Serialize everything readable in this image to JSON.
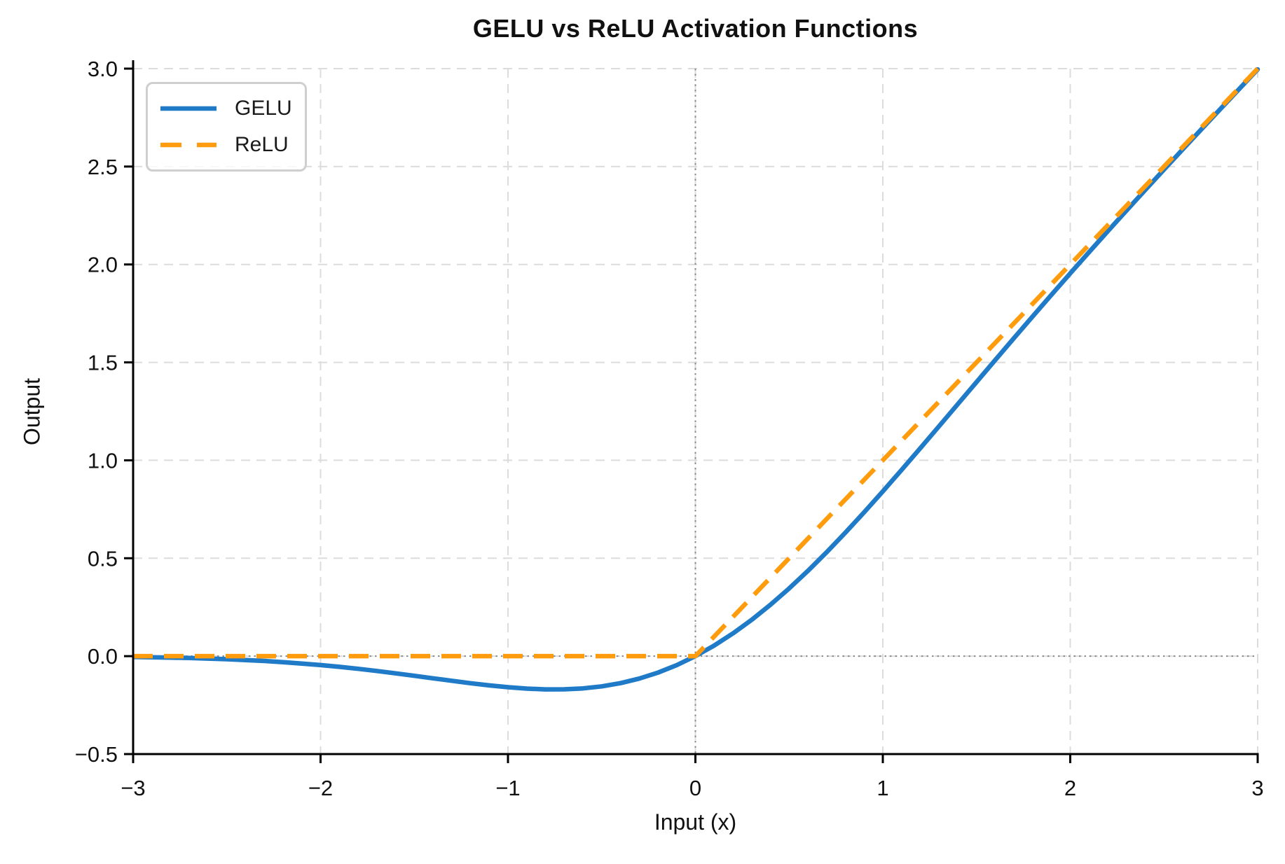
{
  "chart_data": {
    "type": "line",
    "title": "GELU vs ReLU Activation Functions",
    "xlabel": "Input (x)",
    "ylabel": "Output",
    "xlim": [
      -3,
      3
    ],
    "ylim": [
      -0.5,
      3.0
    ],
    "grid": true,
    "grid_style": "dashed",
    "legend_position": "upper-left",
    "x_ticks": {
      "values": [
        -3,
        -2,
        -1,
        0,
        1,
        2,
        3
      ],
      "labels": [
        "−3",
        "−2",
        "−1",
        "0",
        "1",
        "2",
        "3"
      ]
    },
    "y_ticks": {
      "values": [
        -0.5,
        0.0,
        0.5,
        1.0,
        1.5,
        2.0,
        2.5,
        3.0
      ],
      "labels": [
        "−0.5",
        "0.0",
        "0.5",
        "1.0",
        "1.5",
        "2.0",
        "2.5",
        "3.0"
      ]
    },
    "zero_lines": {
      "horizontal_y": 0.0,
      "vertical_x": 0.0
    },
    "series": [
      {
        "name": "GELU",
        "color": "#1f7ac8",
        "style": "solid",
        "x": [
          -3,
          -2.9,
          -2.8,
          -2.7,
          -2.6,
          -2.5,
          -2.4,
          -2.3,
          -2.2,
          -2.1,
          -2,
          -1.9,
          -1.8,
          -1.7,
          -1.6,
          -1.5,
          -1.4,
          -1.3,
          -1.2,
          -1.1,
          -1,
          -0.9,
          -0.8,
          -0.7,
          -0.6,
          -0.5,
          -0.4,
          -0.3,
          -0.2,
          -0.1,
          0,
          0.1,
          0.2,
          0.3,
          0.4,
          0.5,
          0.6,
          0.7,
          0.8,
          0.9,
          1,
          1.1,
          1.2,
          1.3,
          1.4,
          1.5,
          1.6,
          1.7,
          1.8,
          1.9,
          2,
          2.1,
          2.2,
          2.3,
          2.4,
          2.5,
          2.6,
          2.7,
          2.8,
          2.9,
          3
        ],
        "y": [
          -0.004,
          -0.0055,
          -0.0073,
          -0.0094,
          -0.0122,
          -0.0155,
          -0.0197,
          -0.0246,
          -0.0306,
          -0.0376,
          -0.0455,
          -0.0546,
          -0.0647,
          -0.0757,
          -0.0877,
          -0.1002,
          -0.1131,
          -0.1258,
          -0.1381,
          -0.1492,
          -0.1587,
          -0.1657,
          -0.1695,
          -0.1694,
          -0.1646,
          -0.1543,
          -0.1378,
          -0.1146,
          -0.0841,
          -0.046,
          0,
          0.054,
          0.1159,
          0.1854,
          0.2622,
          0.3457,
          0.4354,
          0.5306,
          0.6305,
          0.7343,
          0.8413,
          0.9508,
          1.0619,
          1.1742,
          1.2869,
          1.3998,
          1.5123,
          1.6242,
          1.7354,
          1.8455,
          1.9545,
          2.0625,
          2.1694,
          2.2754,
          2.3803,
          2.4845,
          2.5878,
          2.6906,
          2.7927,
          2.8945,
          2.996
        ]
      },
      {
        "name": "ReLU",
        "color": "#ff9c0d",
        "style": "dashed",
        "x": [
          -3,
          0,
          3
        ],
        "y": [
          0,
          0,
          3
        ]
      }
    ]
  },
  "colors": {
    "grid": "#dcdcdc",
    "zero_line": "#8a8a8a",
    "spine": "#000000",
    "text": "#111111",
    "legend_border": "#cfcfcf"
  }
}
